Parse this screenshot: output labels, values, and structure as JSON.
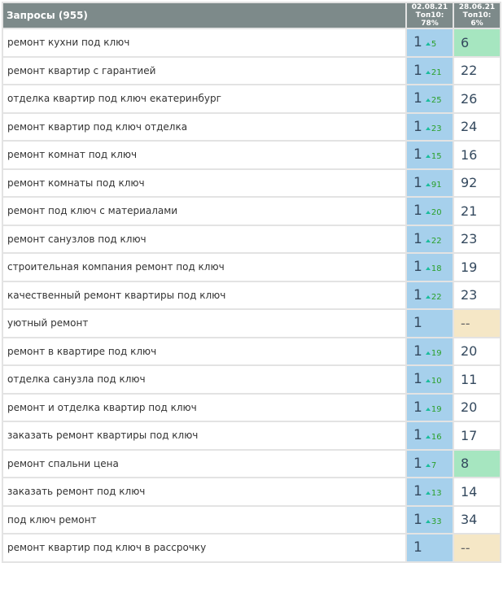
{
  "header": {
    "title": "Запросы (955)",
    "col1": {
      "date": "02.08.21",
      "top": "Топ10: 78%"
    },
    "col2": {
      "date": "28.06.21",
      "top": "Топ10: 6%"
    }
  },
  "rows": [
    {
      "kw": "ремонт кухни под ключ",
      "pos": "1",
      "delta": "5",
      "old": "6",
      "state": "up"
    },
    {
      "kw": "ремонт квартир с гарантией",
      "pos": "1",
      "delta": "21",
      "old": "22",
      "state": ""
    },
    {
      "kw": "отделка квартир под ключ екатеринбург",
      "pos": "1",
      "delta": "25",
      "old": "26",
      "state": ""
    },
    {
      "kw": "ремонт квартир под ключ отделка",
      "pos": "1",
      "delta": "23",
      "old": "24",
      "state": ""
    },
    {
      "kw": "ремонт комнат под ключ",
      "pos": "1",
      "delta": "15",
      "old": "16",
      "state": ""
    },
    {
      "kw": "ремонт комнаты под ключ",
      "pos": "1",
      "delta": "91",
      "old": "92",
      "state": ""
    },
    {
      "kw": "ремонт под ключ с материалами",
      "pos": "1",
      "delta": "20",
      "old": "21",
      "state": ""
    },
    {
      "kw": "ремонт санузлов под ключ",
      "pos": "1",
      "delta": "22",
      "old": "23",
      "state": ""
    },
    {
      "kw": "строительная компания ремонт под ключ",
      "pos": "1",
      "delta": "18",
      "old": "19",
      "state": ""
    },
    {
      "kw": "качественный ремонт квартиры под ключ",
      "pos": "1",
      "delta": "22",
      "old": "23",
      "state": ""
    },
    {
      "kw": "уютный ремонт",
      "pos": "1",
      "delta": null,
      "old": "--",
      "state": "none"
    },
    {
      "kw": "ремонт в квартире под ключ",
      "pos": "1",
      "delta": "19",
      "old": "20",
      "state": ""
    },
    {
      "kw": "отделка санузла под ключ",
      "pos": "1",
      "delta": "10",
      "old": "11",
      "state": ""
    },
    {
      "kw": "ремонт и отделка квартир под ключ",
      "pos": "1",
      "delta": "19",
      "old": "20",
      "state": ""
    },
    {
      "kw": "заказать ремонт квартиры под ключ",
      "pos": "1",
      "delta": "16",
      "old": "17",
      "state": ""
    },
    {
      "kw": "ремонт спальни цена",
      "pos": "1",
      "delta": "7",
      "old": "8",
      "state": "up"
    },
    {
      "kw": "заказать ремонт под ключ",
      "pos": "1",
      "delta": "13",
      "old": "14",
      "state": ""
    },
    {
      "kw": "под ключ ремонт",
      "pos": "1",
      "delta": "33",
      "old": "34",
      "state": ""
    },
    {
      "kw": "ремонт квартир под ключ в рассрочку",
      "pos": "1",
      "delta": null,
      "old": "--",
      "state": "none"
    }
  ]
}
